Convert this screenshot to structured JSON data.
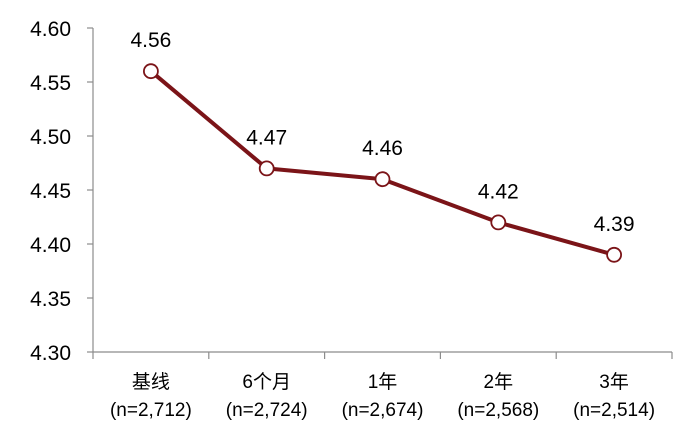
{
  "chart_data": {
    "type": "line",
    "categories": [
      {
        "name": "基线",
        "n": "(n=2,712)"
      },
      {
        "name": "6个月",
        "n": "(n=2,724)"
      },
      {
        "name": "1年",
        "n": "(n=2,674)"
      },
      {
        "name": "2年",
        "n": "(n=2,568)"
      },
      {
        "name": "3年",
        "n": "(n=2,514)"
      }
    ],
    "series": [
      {
        "values": [
          4.56,
          4.47,
          4.46,
          4.42,
          4.39
        ],
        "data_labels": [
          "4.56",
          "4.47",
          "4.46",
          "4.42",
          "4.39"
        ],
        "color": "#7b1418",
        "marker": "open-circle"
      }
    ],
    "ylim": [
      4.3,
      4.6
    ],
    "yticks": [
      "4.60",
      "4.55",
      "4.50",
      "4.45",
      "4.40",
      "4.35",
      "4.30"
    ],
    "grid": false,
    "axis_color": "#8c8c8c"
  }
}
